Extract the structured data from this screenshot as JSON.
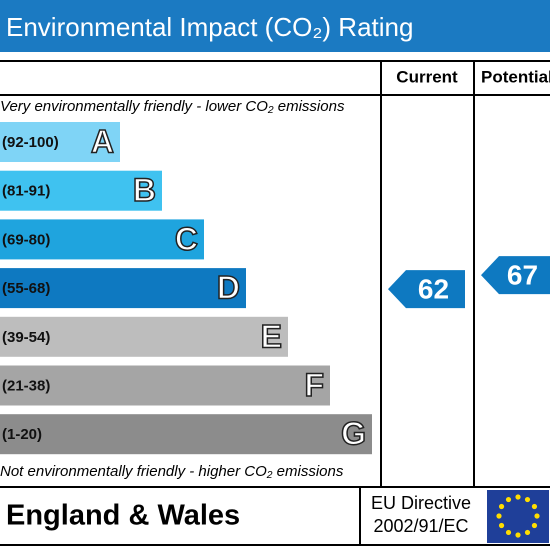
{
  "header": {
    "title": "Environmental Impact (CO₂) Rating"
  },
  "columns": {
    "current": "Current",
    "potential": "Potential"
  },
  "top_note": "Very environmentally friendly - lower CO₂ emissions",
  "bottom_note": "Not environmentally friendly - higher CO₂ emissions",
  "bands": [
    {
      "range": "(92-100)",
      "letter": "A",
      "color": "#7fd4f6"
    },
    {
      "range": "(81-91)",
      "letter": "B",
      "color": "#3fc2f0"
    },
    {
      "range": "(69-80)",
      "letter": "C",
      "color": "#1fa4de"
    },
    {
      "range": "(55-68)",
      "letter": "D",
      "color": "#0e79c1"
    },
    {
      "range": "(39-54)",
      "letter": "E",
      "color": "#bdbdbd"
    },
    {
      "range": "(21-38)",
      "letter": "F",
      "color": "#a5a5a5"
    },
    {
      "range": "(1-20)",
      "letter": "G",
      "color": "#8c8c8c"
    }
  ],
  "ratings": {
    "current": {
      "value": 62,
      "band": 3
    },
    "potential": {
      "value": 67,
      "band": 3
    }
  },
  "footer": {
    "region": "England & Wales",
    "directive_line1": "EU Directive",
    "directive_line2": "2002/91/EC"
  }
}
